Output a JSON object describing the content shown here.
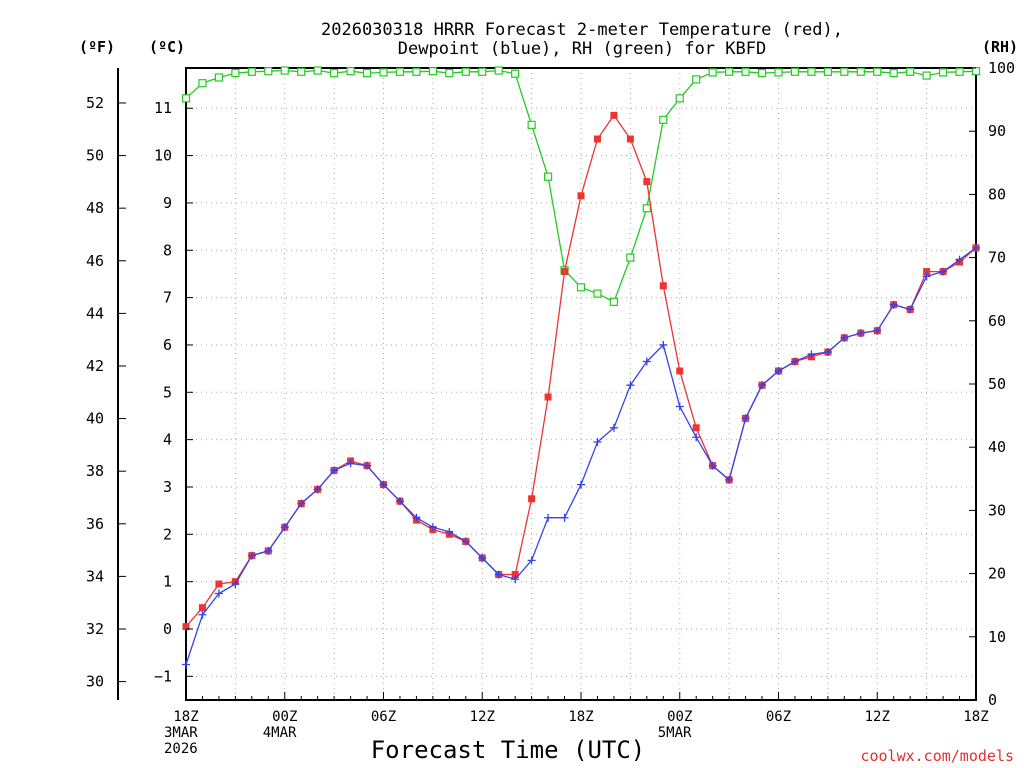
{
  "chart_data": {
    "type": "line",
    "title_line1": "2026030318 HRRR Forecast 2-meter Temperature (red),",
    "title_line2": "Dewpoint (blue), RH (green) for KBFD",
    "unit_left_f": "(ºF)",
    "unit_left_c": "(ºC)",
    "unit_right": "(RH)",
    "xlabel": "Forecast Time (UTC)",
    "credit": "coolwx.com/models",
    "x_range_hours": [
      0,
      48
    ],
    "c_range": [
      -1.5,
      11.85
    ],
    "rh_range": [
      0,
      100
    ],
    "c_ticks": [
      -1,
      0,
      1,
      2,
      3,
      4,
      5,
      6,
      7,
      8,
      9,
      10,
      11
    ],
    "f_ticks": [
      30,
      32,
      34,
      36,
      38,
      40,
      42,
      44,
      46,
      48,
      50,
      52
    ],
    "rh_ticks": [
      0,
      10,
      20,
      30,
      40,
      50,
      60,
      70,
      80,
      90,
      100
    ],
    "x_ticks": [
      {
        "h": 0,
        "lines": [
          "18Z",
          "3MAR",
          "2026"
        ]
      },
      {
        "h": 6,
        "lines": [
          "00Z",
          "4MAR"
        ]
      },
      {
        "h": 12,
        "lines": [
          "06Z"
        ]
      },
      {
        "h": 18,
        "lines": [
          "12Z"
        ]
      },
      {
        "h": 24,
        "lines": [
          "18Z"
        ]
      },
      {
        "h": 30,
        "lines": [
          "00Z",
          "5MAR"
        ]
      },
      {
        "h": 36,
        "lines": [
          "06Z"
        ]
      },
      {
        "h": 42,
        "lines": [
          "12Z"
        ]
      },
      {
        "h": 48,
        "lines": [
          "18Z"
        ]
      }
    ],
    "series": [
      {
        "name": "Temperature",
        "unit": "C",
        "color": "#ee3333",
        "marker": "filled-square",
        "values": [
          0.05,
          0.45,
          0.95,
          1.0,
          1.55,
          1.65,
          2.15,
          2.65,
          2.95,
          3.35,
          3.55,
          3.45,
          3.05,
          2.7,
          2.3,
          2.1,
          2.0,
          1.85,
          1.5,
          1.15,
          1.15,
          2.75,
          4.9,
          7.55,
          9.15,
          10.35,
          10.85,
          10.35,
          9.45,
          7.25,
          5.45,
          4.25,
          3.45,
          3.15,
          4.45,
          5.15,
          5.45,
          5.65,
          5.75,
          5.85,
          6.15,
          6.25,
          6.3,
          6.85,
          6.75,
          7.55,
          7.55,
          7.75,
          8.05
        ]
      },
      {
        "name": "Dewpoint",
        "unit": "C",
        "color": "#3344ee",
        "marker": "plus",
        "values": [
          -0.75,
          0.3,
          0.75,
          0.95,
          1.55,
          1.65,
          2.15,
          2.65,
          2.95,
          3.35,
          3.5,
          3.45,
          3.05,
          2.7,
          2.35,
          2.15,
          2.05,
          1.85,
          1.5,
          1.15,
          1.05,
          1.45,
          2.35,
          2.35,
          3.05,
          3.95,
          4.25,
          5.15,
          5.65,
          6.0,
          4.7,
          4.05,
          3.45,
          3.15,
          4.45,
          5.15,
          5.45,
          5.65,
          5.8,
          5.85,
          6.15,
          6.25,
          6.3,
          6.85,
          6.75,
          7.45,
          7.55,
          7.8,
          8.05
        ]
      },
      {
        "name": "RH",
        "unit": "%",
        "color": "#22cc22",
        "marker": "open-square",
        "values": [
          95.2,
          97.6,
          98.5,
          99.2,
          99.4,
          99.5,
          99.6,
          99.4,
          99.6,
          99.2,
          99.5,
          99.2,
          99.3,
          99.4,
          99.4,
          99.5,
          99.2,
          99.4,
          99.4,
          99.6,
          99.1,
          91.0,
          82.8,
          68.0,
          65.3,
          64.3,
          63.0,
          70.0,
          77.8,
          91.8,
          95.2,
          98.2,
          99.3,
          99.4,
          99.4,
          99.2,
          99.3,
          99.4,
          99.4,
          99.4,
          99.4,
          99.4,
          99.4,
          99.2,
          99.4,
          98.8,
          99.3,
          99.4,
          99.5
        ]
      }
    ]
  }
}
